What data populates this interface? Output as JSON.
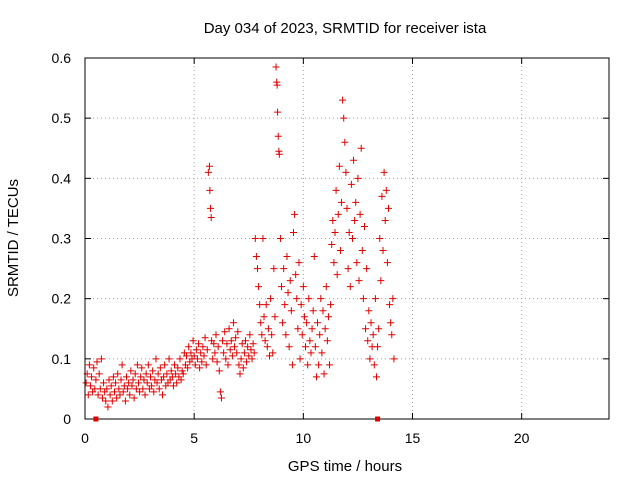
{
  "chart_data": {
    "type": "scatter",
    "title": "Day 034 of 2023, SRMTID for receiver ista",
    "xlabel": "GPS time / hours",
    "ylabel": "SRMTID / TECUs",
    "xlim": [
      0,
      24
    ],
    "ylim": [
      0,
      0.6
    ],
    "xticks": [
      0,
      5,
      10,
      15,
      20
    ],
    "xtick_labels": [
      "0",
      "5",
      "10",
      "15",
      "20"
    ],
    "yticks": [
      0,
      0.1,
      0.2,
      0.3,
      0.4,
      0.5,
      0.6
    ],
    "ytick_labels": [
      "0",
      "0.1",
      "0.2",
      "0.3",
      "0.4",
      "0.5",
      "0.6"
    ],
    "grid": true,
    "marker": "plus",
    "color": "#e00000",
    "square_markers": [
      {
        "x": 0.5,
        "y": 0.0
      },
      {
        "x": 13.4,
        "y": 0.0
      }
    ],
    "series": [
      {
        "name": "SRMTID",
        "points": [
          [
            0.05,
            0.06
          ],
          [
            0.1,
            0.075
          ],
          [
            0.15,
            0.04
          ],
          [
            0.2,
            0.09
          ],
          [
            0.25,
            0.055
          ],
          [
            0.3,
            0.07
          ],
          [
            0.35,
            0.045
          ],
          [
            0.4,
            0.085
          ],
          [
            0.45,
            0.05
          ],
          [
            0.5,
            0.065
          ],
          [
            0.55,
            0.095
          ],
          [
            0.6,
            0.04
          ],
          [
            0.65,
            0.075
          ],
          [
            0.7,
            0.05
          ],
          [
            0.75,
            0.1
          ],
          [
            0.8,
            0.035
          ],
          [
            0.85,
            0.06
          ],
          [
            0.9,
            0.045
          ],
          [
            0.95,
            0.03
          ],
          [
            1.0,
            0.05
          ],
          [
            1.05,
            0.02
          ],
          [
            1.1,
            0.065
          ],
          [
            1.15,
            0.04
          ],
          [
            1.2,
            0.055
          ],
          [
            1.25,
            0.03
          ],
          [
            1.3,
            0.07
          ],
          [
            1.35,
            0.045
          ],
          [
            1.4,
            0.06
          ],
          [
            1.45,
            0.035
          ],
          [
            1.5,
            0.075
          ],
          [
            1.55,
            0.05
          ],
          [
            1.6,
            0.04
          ],
          [
            1.65,
            0.065
          ],
          [
            1.7,
            0.09
          ],
          [
            1.75,
            0.045
          ],
          [
            1.8,
            0.055
          ],
          [
            1.85,
            0.03
          ],
          [
            1.9,
            0.07
          ],
          [
            1.95,
            0.05
          ],
          [
            2.0,
            0.06
          ],
          [
            2.05,
            0.04
          ],
          [
            2.1,
            0.08
          ],
          [
            2.15,
            0.055
          ],
          [
            2.2,
            0.065
          ],
          [
            2.25,
            0.035
          ],
          [
            2.3,
            0.075
          ],
          [
            2.35,
            0.05
          ],
          [
            2.4,
            0.09
          ],
          [
            2.45,
            0.06
          ],
          [
            2.5,
            0.045
          ],
          [
            2.55,
            0.07
          ],
          [
            2.6,
            0.085
          ],
          [
            2.65,
            0.05
          ],
          [
            2.7,
            0.065
          ],
          [
            2.75,
            0.04
          ],
          [
            2.8,
            0.075
          ],
          [
            2.85,
            0.06
          ],
          [
            2.9,
            0.09
          ],
          [
            2.95,
            0.05
          ],
          [
            3.0,
            0.07
          ],
          [
            3.05,
            0.055
          ],
          [
            3.1,
            0.08
          ],
          [
            3.15,
            0.045
          ],
          [
            3.2,
            0.065
          ],
          [
            3.25,
            0.1
          ],
          [
            3.3,
            0.06
          ],
          [
            3.35,
            0.075
          ],
          [
            3.4,
            0.05
          ],
          [
            3.45,
            0.085
          ],
          [
            3.5,
            0.065
          ],
          [
            3.55,
            0.04
          ],
          [
            3.6,
            0.07
          ],
          [
            3.65,
            0.09
          ],
          [
            3.7,
            0.055
          ],
          [
            3.75,
            0.075
          ],
          [
            3.8,
            0.06
          ],
          [
            3.85,
            0.1
          ],
          [
            3.9,
            0.065
          ],
          [
            3.95,
            0.08
          ],
          [
            4.0,
            0.07
          ],
          [
            4.05,
            0.055
          ],
          [
            4.1,
            0.09
          ],
          [
            4.15,
            0.075
          ],
          [
            4.2,
            0.06
          ],
          [
            4.25,
            0.085
          ],
          [
            4.3,
            0.07
          ],
          [
            4.35,
            0.1
          ],
          [
            4.4,
            0.065
          ],
          [
            4.45,
            0.08
          ],
          [
            4.5,
            0.075
          ],
          [
            4.55,
            0.11
          ],
          [
            4.6,
            0.09
          ],
          [
            4.65,
            0.105
          ],
          [
            4.7,
            0.085
          ],
          [
            4.75,
            0.12
          ],
          [
            4.8,
            0.095
          ],
          [
            4.85,
            0.11
          ],
          [
            4.9,
            0.1
          ],
          [
            4.95,
            0.13
          ],
          [
            5.0,
            0.105
          ],
          [
            5.05,
            0.09
          ],
          [
            5.1,
            0.115
          ],
          [
            5.15,
            0.1
          ],
          [
            5.2,
            0.125
          ],
          [
            5.25,
            0.085
          ],
          [
            5.3,
            0.11
          ],
          [
            5.35,
            0.095
          ],
          [
            5.4,
            0.12
          ],
          [
            5.45,
            0.105
          ],
          [
            5.5,
            0.135
          ],
          [
            5.55,
            0.09
          ],
          [
            5.6,
            0.115
          ],
          [
            5.65,
            0.41
          ],
          [
            5.7,
            0.42
          ],
          [
            5.72,
            0.38
          ],
          [
            5.75,
            0.35
          ],
          [
            5.78,
            0.335
          ],
          [
            5.8,
            0.13
          ],
          [
            5.85,
            0.1
          ],
          [
            5.9,
            0.125
          ],
          [
            5.95,
            0.11
          ],
          [
            6.0,
            0.14
          ],
          [
            6.05,
            0.095
          ],
          [
            6.1,
            0.12
          ],
          [
            6.15,
            0.08
          ],
          [
            6.2,
            0.045
          ],
          [
            6.25,
            0.035
          ],
          [
            6.3,
            0.13
          ],
          [
            6.35,
            0.11
          ],
          [
            6.4,
            0.145
          ],
          [
            6.45,
            0.1
          ],
          [
            6.5,
            0.125
          ],
          [
            6.55,
            0.09
          ],
          [
            6.6,
            0.15
          ],
          [
            6.65,
            0.115
          ],
          [
            6.7,
            0.13
          ],
          [
            6.75,
            0.105
          ],
          [
            6.8,
            0.16
          ],
          [
            6.85,
            0.12
          ],
          [
            6.9,
            0.135
          ],
          [
            6.95,
            0.11
          ],
          [
            7.0,
            0.145
          ],
          [
            7.05,
            0.09
          ],
          [
            7.1,
            0.075
          ],
          [
            7.15,
            0.1
          ],
          [
            7.2,
            0.125
          ],
          [
            7.25,
            0.085
          ],
          [
            7.3,
            0.11
          ],
          [
            7.35,
            0.13
          ],
          [
            7.4,
            0.095
          ],
          [
            7.45,
            0.12
          ],
          [
            7.5,
            0.105
          ],
          [
            7.55,
            0.14
          ],
          [
            7.6,
            0.115
          ],
          [
            7.65,
            0.1
          ],
          [
            7.7,
            0.125
          ],
          [
            7.75,
            0.11
          ],
          [
            7.8,
            0.3
          ],
          [
            7.85,
            0.27
          ],
          [
            7.9,
            0.25
          ],
          [
            7.95,
            0.22
          ],
          [
            8.0,
            0.19
          ],
          [
            8.05,
            0.16
          ],
          [
            8.1,
            0.14
          ],
          [
            8.15,
            0.3
          ],
          [
            8.2,
            0.17
          ],
          [
            8.25,
            0.13
          ],
          [
            8.3,
            0.19
          ],
          [
            8.35,
            0.12
          ],
          [
            8.4,
            0.15
          ],
          [
            8.45,
            0.105
          ],
          [
            8.5,
            0.2
          ],
          [
            8.55,
            0.14
          ],
          [
            8.6,
            0.11
          ],
          [
            8.65,
            0.25
          ],
          [
            8.7,
            0.17
          ],
          [
            8.75,
            0.585
          ],
          [
            8.78,
            0.56
          ],
          [
            8.8,
            0.555
          ],
          [
            8.82,
            0.51
          ],
          [
            8.85,
            0.47
          ],
          [
            8.88,
            0.445
          ],
          [
            8.9,
            0.44
          ],
          [
            8.95,
            0.3
          ],
          [
            9.0,
            0.22
          ],
          [
            9.05,
            0.16
          ],
          [
            9.1,
            0.25
          ],
          [
            9.15,
            0.19
          ],
          [
            9.2,
            0.14
          ],
          [
            9.25,
            0.27
          ],
          [
            9.3,
            0.21
          ],
          [
            9.35,
            0.12
          ],
          [
            9.4,
            0.23
          ],
          [
            9.45,
            0.18
          ],
          [
            9.5,
            0.09
          ],
          [
            9.55,
            0.31
          ],
          [
            9.6,
            0.34
          ],
          [
            9.65,
            0.24
          ],
          [
            9.7,
            0.2
          ],
          [
            9.75,
            0.15
          ],
          [
            9.8,
            0.26
          ],
          [
            9.85,
            0.1
          ],
          [
            9.9,
            0.19
          ],
          [
            9.95,
            0.14
          ],
          [
            10.0,
            0.22
          ],
          [
            10.05,
            0.17
          ],
          [
            10.1,
            0.12
          ],
          [
            10.15,
            0.16
          ],
          [
            10.2,
            0.09
          ],
          [
            10.25,
            0.2
          ],
          [
            10.3,
            0.13
          ],
          [
            10.35,
            0.11
          ],
          [
            10.4,
            0.15
          ],
          [
            10.45,
            0.18
          ],
          [
            10.5,
            0.27
          ],
          [
            10.55,
            0.12
          ],
          [
            10.6,
            0.07
          ],
          [
            10.65,
            0.16
          ],
          [
            10.7,
            0.09
          ],
          [
            10.75,
            0.14
          ],
          [
            10.8,
            0.2
          ],
          [
            10.85,
            0.11
          ],
          [
            10.9,
            0.18
          ],
          [
            10.95,
            0.075
          ],
          [
            11.0,
            0.15
          ],
          [
            11.05,
            0.22
          ],
          [
            11.1,
            0.13
          ],
          [
            11.15,
            0.17
          ],
          [
            11.2,
            0.09
          ],
          [
            11.25,
            0.19
          ],
          [
            11.3,
            0.29
          ],
          [
            11.35,
            0.33
          ],
          [
            11.4,
            0.26
          ],
          [
            11.45,
            0.31
          ],
          [
            11.5,
            0.38
          ],
          [
            11.55,
            0.24
          ],
          [
            11.6,
            0.34
          ],
          [
            11.65,
            0.42
          ],
          [
            11.7,
            0.28
          ],
          [
            11.75,
            0.36
          ],
          [
            11.8,
            0.53
          ],
          [
            11.85,
            0.5
          ],
          [
            11.9,
            0.46
          ],
          [
            11.95,
            0.41
          ],
          [
            12.0,
            0.35
          ],
          [
            12.05,
            0.25
          ],
          [
            12.1,
            0.31
          ],
          [
            12.15,
            0.22
          ],
          [
            12.2,
            0.39
          ],
          [
            12.25,
            0.3
          ],
          [
            12.3,
            0.43
          ],
          [
            12.35,
            0.33
          ],
          [
            12.4,
            0.36
          ],
          [
            12.45,
            0.26
          ],
          [
            12.5,
            0.4
          ],
          [
            12.55,
            0.23
          ],
          [
            12.6,
            0.34
          ],
          [
            12.65,
            0.45
          ],
          [
            12.7,
            0.28
          ],
          [
            12.75,
            0.2
          ],
          [
            12.8,
            0.32
          ],
          [
            12.85,
            0.15
          ],
          [
            12.9,
            0.25
          ],
          [
            12.95,
            0.13
          ],
          [
            13.0,
            0.18
          ],
          [
            13.05,
            0.1
          ],
          [
            13.1,
            0.16
          ],
          [
            13.15,
            0.12
          ],
          [
            13.2,
            0.14
          ],
          [
            13.25,
            0.09
          ],
          [
            13.3,
            0.2
          ],
          [
            13.35,
            0.07
          ],
          [
            13.4,
            0.12
          ],
          [
            13.45,
            0.15
          ],
          [
            13.5,
            0.3
          ],
          [
            13.55,
            0.23
          ],
          [
            13.6,
            0.37
          ],
          [
            13.65,
            0.28
          ],
          [
            13.7,
            0.41
          ],
          [
            13.75,
            0.33
          ],
          [
            13.8,
            0.38
          ],
          [
            13.85,
            0.26
          ],
          [
            13.9,
            0.35
          ],
          [
            13.95,
            0.19
          ],
          [
            14.0,
            0.16
          ],
          [
            14.05,
            0.14
          ],
          [
            14.1,
            0.2
          ],
          [
            14.15,
            0.1
          ]
        ]
      }
    ]
  }
}
